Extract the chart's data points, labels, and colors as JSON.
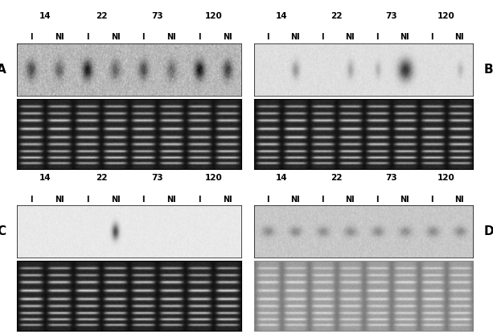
{
  "fig_width": 6.13,
  "fig_height": 4.15,
  "dpi": 100,
  "bg_color": "#ffffff",
  "clone_labels": [
    "14",
    "22",
    "73",
    "120"
  ],
  "panels": {
    "A": {
      "blot_bg": 0.72,
      "blot_noise": 0.04,
      "blot_bands": [
        {
          "lane": 0,
          "intensity": 0.3,
          "wx": 0.55,
          "wy": 0.55
        },
        {
          "lane": 1,
          "intensity": 0.4,
          "wx": 0.55,
          "wy": 0.55
        },
        {
          "lane": 2,
          "intensity": 0.08,
          "wx": 0.55,
          "wy": 0.55
        },
        {
          "lane": 3,
          "intensity": 0.38,
          "wx": 0.55,
          "wy": 0.55
        },
        {
          "lane": 4,
          "intensity": 0.3,
          "wx": 0.55,
          "wy": 0.55
        },
        {
          "lane": 5,
          "intensity": 0.4,
          "wx": 0.55,
          "wy": 0.55
        },
        {
          "lane": 6,
          "intensity": 0.08,
          "wx": 0.55,
          "wy": 0.55
        },
        {
          "lane": 7,
          "intensity": 0.25,
          "wx": 0.55,
          "wy": 0.55
        }
      ],
      "gel_dark": true,
      "gel_seed": 42
    },
    "B": {
      "blot_bg": 0.87,
      "blot_noise": 0.015,
      "blot_bands": [
        {
          "lane": 1,
          "intensity": 0.6,
          "wx": 0.45,
          "wy": 0.5
        },
        {
          "lane": 3,
          "intensity": 0.65,
          "wx": 0.4,
          "wy": 0.5
        },
        {
          "lane": 4,
          "intensity": 0.7,
          "wx": 0.35,
          "wy": 0.45
        },
        {
          "lane": 5,
          "intensity": 0.2,
          "wx": 0.8,
          "wy": 0.6
        },
        {
          "lane": 7,
          "intensity": 0.72,
          "wx": 0.35,
          "wy": 0.4
        }
      ],
      "gel_dark": true,
      "gel_seed": 12
    },
    "C": {
      "blot_bg": 0.91,
      "blot_noise": 0.01,
      "blot_bands": [
        {
          "lane": 3,
          "intensity": 0.3,
          "wx": 0.4,
          "wy": 0.45
        }
      ],
      "gel_dark": true,
      "gel_seed": 7
    },
    "D": {
      "blot_bg": 0.78,
      "blot_noise": 0.02,
      "blot_bands": [
        {
          "lane": 0,
          "intensity": 0.55,
          "wx": 0.7,
          "wy": 0.3
        },
        {
          "lane": 1,
          "intensity": 0.55,
          "wx": 0.7,
          "wy": 0.3
        },
        {
          "lane": 2,
          "intensity": 0.55,
          "wx": 0.7,
          "wy": 0.3
        },
        {
          "lane": 3,
          "intensity": 0.55,
          "wx": 0.7,
          "wy": 0.3
        },
        {
          "lane": 4,
          "intensity": 0.55,
          "wx": 0.7,
          "wy": 0.3
        },
        {
          "lane": 5,
          "intensity": 0.55,
          "wx": 0.7,
          "wy": 0.3
        },
        {
          "lane": 6,
          "intensity": 0.55,
          "wx": 0.7,
          "wy": 0.3
        },
        {
          "lane": 7,
          "intensity": 0.55,
          "wx": 0.7,
          "wy": 0.3
        }
      ],
      "gel_dark": false,
      "gel_seed": 99
    }
  },
  "panel_positions": {
    "A": {
      "col": 0,
      "row": 0,
      "label_side": "left"
    },
    "B": {
      "col": 1,
      "row": 0,
      "label_side": "right"
    },
    "C": {
      "col": 0,
      "row": 1,
      "label_side": "left"
    },
    "D": {
      "col": 1,
      "row": 1,
      "label_side": "right"
    }
  }
}
